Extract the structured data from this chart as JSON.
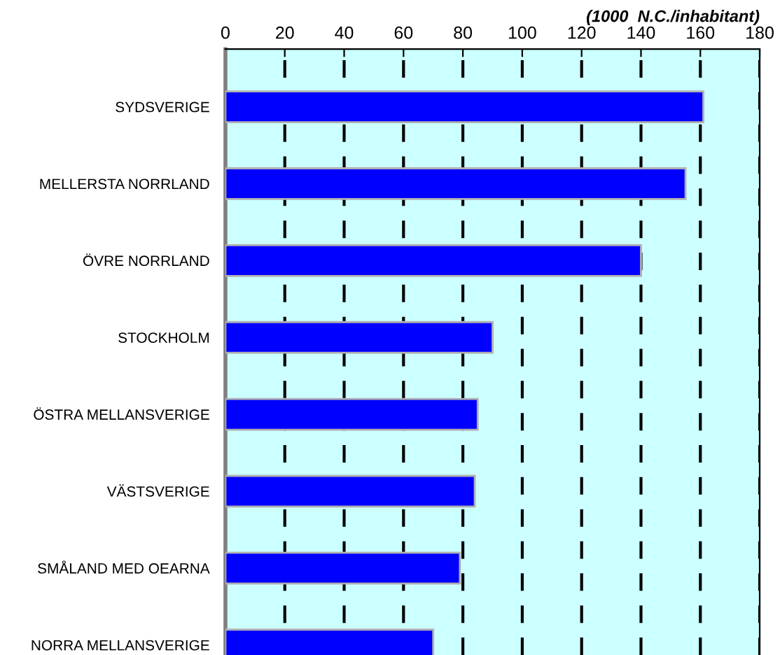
{
  "chart_data": {
    "type": "bar",
    "orientation": "horizontal",
    "annotations": [
      "(1000  N.C./inhabitant)"
    ],
    "categories": [
      "SYDSVERIGE",
      "MELLERSTA NORRLAND",
      "ÖVRE NORRLAND",
      "STOCKHOLM",
      "ÖSTRA MELLANSVERIGE",
      "VÄSTSVERIGE",
      "SMÅLAND MED OEARNA",
      "NORRA MELLANSVERIGE"
    ],
    "values": [
      161,
      155,
      140,
      90,
      85,
      84,
      79,
      70
    ],
    "color": "#0000ff",
    "xlim": [
      0,
      180
    ],
    "xticks": [
      0,
      20,
      40,
      60,
      80,
      100,
      120,
      140,
      160,
      180
    ],
    "grid": "x",
    "line_style": "dashed"
  }
}
